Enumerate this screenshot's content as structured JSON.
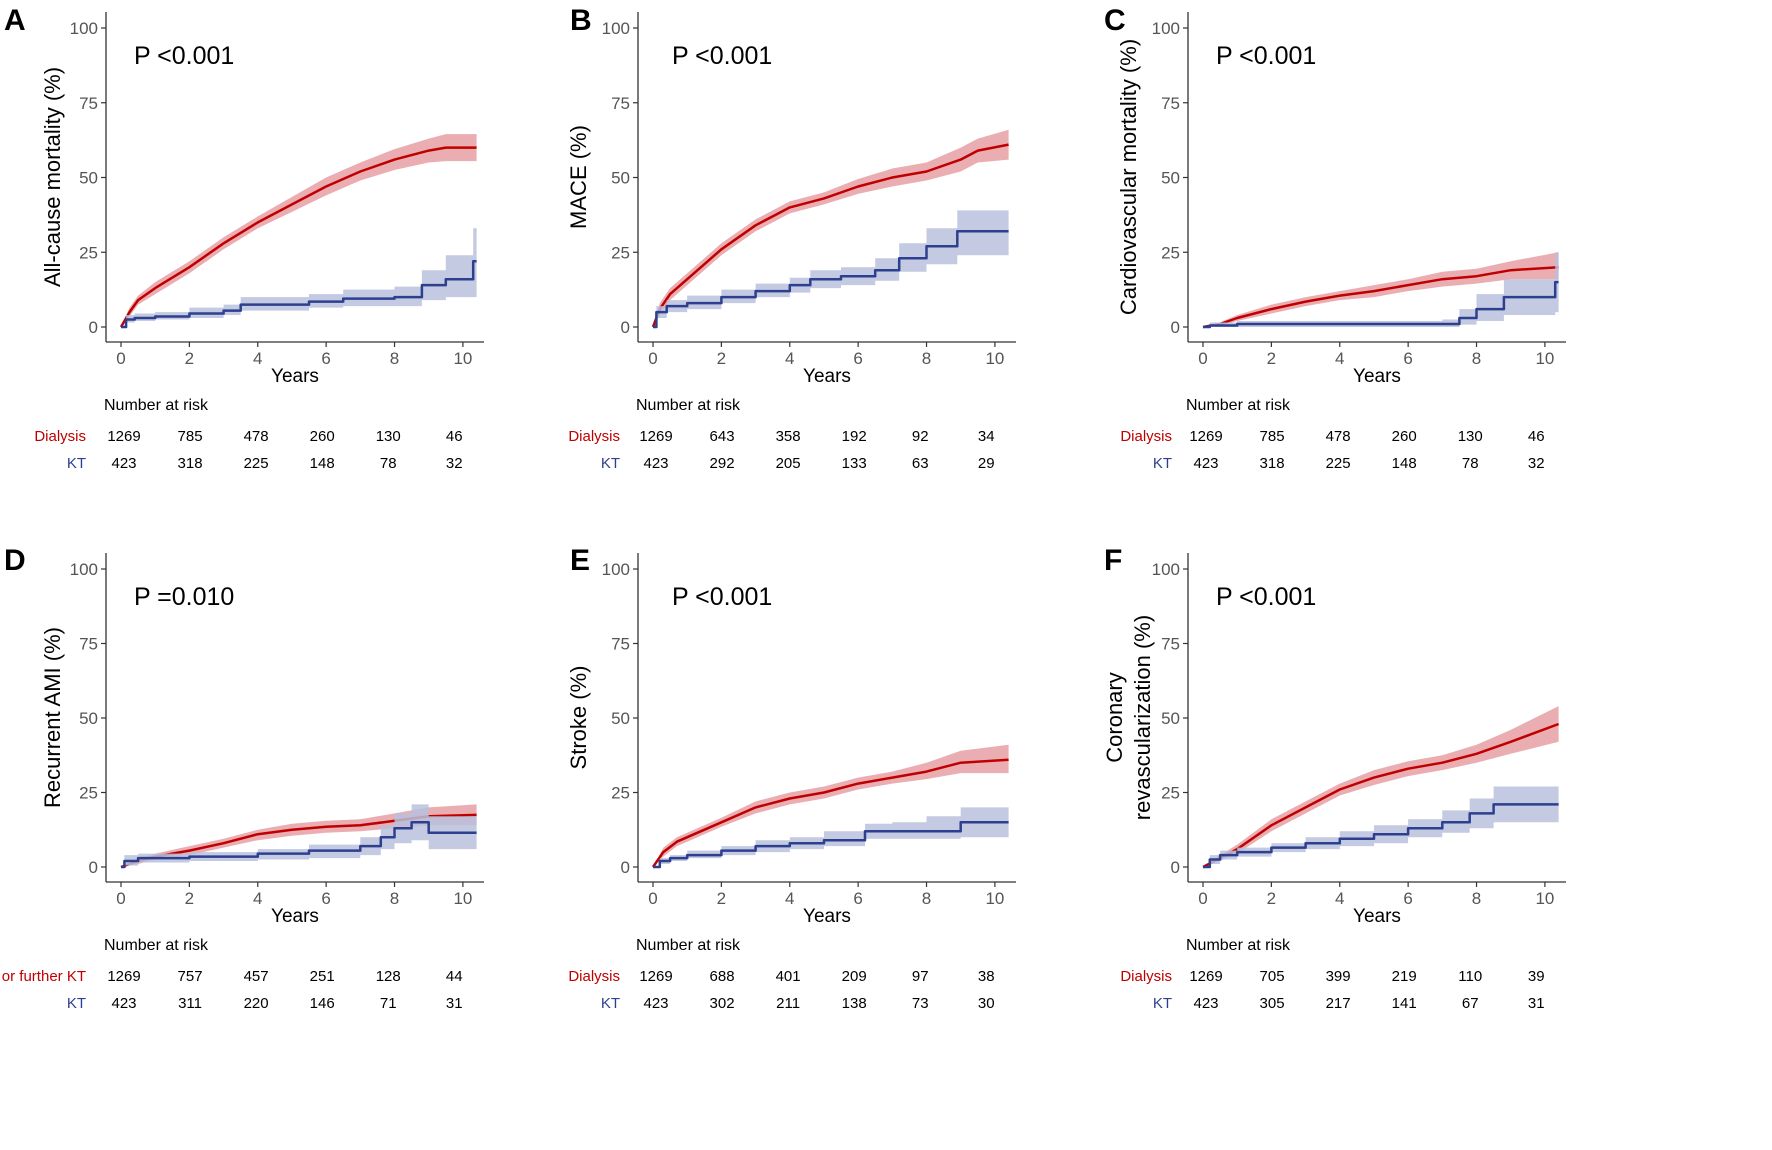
{
  "colors": {
    "dialysis": "#c00000",
    "kt": "#2d3f8f",
    "dialysis_band": "#e6a0a5",
    "kt_band": "#b8c1dc",
    "axis": "#333333"
  },
  "chart_data": [
    {
      "type": "line",
      "panel": "A",
      "pvalue": "P <0.001",
      "ylabel": "All-cause mortality (%)",
      "xlabel": "Years",
      "xlim": [
        0,
        10.5
      ],
      "ylim": [
        0,
        100
      ],
      "xticks": [
        0,
        2,
        4,
        6,
        8,
        10
      ],
      "yticks": [
        0,
        25,
        50,
        75,
        100
      ],
      "series": [
        {
          "name": "Dialysis",
          "color": "dialysis",
          "step": false,
          "x": [
            0,
            0.25,
            0.5,
            1,
            2,
            3,
            4,
            5,
            6,
            7,
            8,
            9,
            9.5,
            10.4
          ],
          "y": [
            0,
            5,
            9,
            13,
            20,
            28,
            35,
            41,
            47,
            52,
            56,
            59,
            60,
            60
          ],
          "lower": [
            0,
            3.5,
            7.5,
            11,
            18,
            26,
            33,
            38.5,
            44,
            49,
            52.5,
            55,
            55.5,
            55.5
          ],
          "upper": [
            0,
            6.5,
            10.5,
            15,
            22,
            30,
            37,
            43.5,
            50,
            55,
            59.5,
            63,
            64.5,
            64.5
          ]
        },
        {
          "name": "KT",
          "color": "kt",
          "step": true,
          "x": [
            0,
            0.15,
            0.4,
            1,
            2,
            3,
            3.5,
            5.5,
            6.5,
            8,
            8.8,
            9.5,
            10.3,
            10.4
          ],
          "y": [
            0,
            2.5,
            3,
            3.5,
            4.5,
            5.5,
            7.5,
            8.5,
            9.5,
            10,
            14,
            16,
            22,
            22
          ],
          "lower": [
            0,
            1.5,
            2,
            2.5,
            3,
            4,
            5.5,
            6.5,
            7,
            7,
            9,
            10,
            10,
            10
          ],
          "upper": [
            0,
            4,
            4.5,
            5,
            6.5,
            7.5,
            10,
            11,
            12.5,
            13.5,
            19,
            24,
            33,
            33
          ]
        }
      ],
      "risk_table": {
        "title": "Number at risk",
        "groups": [
          {
            "label": "Dialysis",
            "color": "dialysis",
            "values": [
              "1269",
              "785",
              "478",
              "260",
              "130",
              "46"
            ]
          },
          {
            "label": "KT",
            "color": "kt",
            "values": [
              "423",
              "318",
              "225",
              "148",
              "78",
              "32"
            ]
          }
        ]
      }
    },
    {
      "type": "line",
      "panel": "B",
      "pvalue": "P <0.001",
      "ylabel": "MACE (%)",
      "xlabel": "Years",
      "xlim": [
        0,
        10.5
      ],
      "ylim": [
        0,
        100
      ],
      "xticks": [
        0,
        2,
        4,
        6,
        8,
        10
      ],
      "yticks": [
        0,
        25,
        50,
        75,
        100
      ],
      "series": [
        {
          "name": "Dialysis",
          "color": "dialysis",
          "step": false,
          "x": [
            0,
            0.2,
            0.5,
            1,
            2,
            3,
            3.5,
            4,
            5,
            6,
            7,
            8,
            9,
            9.5,
            10.4
          ],
          "y": [
            0,
            6,
            11,
            16,
            26,
            34,
            37,
            40,
            43,
            47,
            50,
            52,
            56,
            59,
            61
          ],
          "lower": [
            0,
            4,
            9,
            14,
            24,
            32,
            35,
            38,
            41,
            44.5,
            47,
            49,
            52,
            55,
            56
          ],
          "upper": [
            0,
            8,
            13,
            18,
            28,
            36,
            39,
            42,
            45,
            49.5,
            53,
            55,
            60,
            63,
            66
          ]
        },
        {
          "name": "KT",
          "color": "kt",
          "step": true,
          "x": [
            0,
            0.1,
            0.4,
            1,
            2,
            3,
            4,
            4.6,
            5.5,
            6.5,
            7.2,
            8,
            8.9,
            10.4
          ],
          "y": [
            0,
            5,
            7,
            8,
            10,
            12,
            14,
            16,
            17,
            19,
            23,
            27,
            32,
            32
          ],
          "lower": [
            0,
            3,
            5,
            6,
            8,
            10,
            11.5,
            13,
            14,
            15.5,
            18.5,
            21,
            24,
            24
          ],
          "upper": [
            0,
            7,
            9,
            10.5,
            12.5,
            14.5,
            16.5,
            19,
            20,
            23,
            28,
            33,
            39,
            39
          ]
        }
      ],
      "risk_table": {
        "title": "Number at risk",
        "groups": [
          {
            "label": "Dialysis",
            "color": "dialysis",
            "values": [
              "1269",
              "643",
              "358",
              "192",
              "92",
              "34"
            ]
          },
          {
            "label": "KT",
            "color": "kt",
            "values": [
              "423",
              "292",
              "205",
              "133",
              "63",
              "29"
            ]
          }
        ]
      }
    },
    {
      "type": "line",
      "panel": "C",
      "pvalue": "P <0.001",
      "ylabel": "Cardiovascular mortality (%)",
      "xlabel": "Years",
      "xlim": [
        0,
        10.5
      ],
      "ylim": [
        0,
        100
      ],
      "xticks": [
        0,
        2,
        4,
        6,
        8,
        10
      ],
      "yticks": [
        0,
        25,
        50,
        75,
        100
      ],
      "series": [
        {
          "name": "Dialysis",
          "color": "dialysis",
          "step": false,
          "x": [
            0,
            0.5,
            1,
            2,
            3,
            4,
            5,
            6,
            7,
            8,
            9,
            10.4
          ],
          "y": [
            0,
            1,
            3,
            6,
            8.5,
            10.5,
            12,
            14,
            16,
            17,
            19,
            20
          ],
          "lower": [
            0,
            0.4,
            2,
            4.5,
            7,
            9,
            10,
            12,
            13.5,
            14.5,
            16,
            16
          ],
          "upper": [
            0,
            1.6,
            4,
            7.5,
            10,
            12,
            14,
            16,
            18.5,
            19.5,
            22,
            25
          ]
        },
        {
          "name": "KT",
          "color": "kt",
          "step": true,
          "x": [
            0,
            0.2,
            1,
            7,
            7.5,
            8,
            8.8,
            10.3,
            10.4
          ],
          "y": [
            0,
            0.5,
            1,
            1,
            3,
            6,
            10,
            15,
            15
          ],
          "lower": [
            0,
            0,
            0,
            0,
            0.8,
            2,
            4,
            5,
            5
          ],
          "upper": [
            0,
            1.5,
            2,
            2.5,
            6,
            11,
            16,
            25,
            25
          ]
        }
      ],
      "risk_table": {
        "title": "Number at risk",
        "groups": [
          {
            "label": "Dialysis",
            "color": "dialysis",
            "values": [
              "1269",
              "785",
              "478",
              "260",
              "130",
              "46"
            ]
          },
          {
            "label": "KT",
            "color": "kt",
            "values": [
              "423",
              "318",
              "225",
              "148",
              "78",
              "32"
            ]
          }
        ]
      }
    },
    {
      "type": "line",
      "panel": "D",
      "pvalue": "P =0.010",
      "ylabel": "Recurrent AMI (%)",
      "xlabel": "Years",
      "xlim": [
        0,
        10.5
      ],
      "ylim": [
        0,
        100
      ],
      "xticks": [
        0,
        2,
        4,
        6,
        8,
        10
      ],
      "yticks": [
        0,
        25,
        50,
        75,
        100
      ],
      "series": [
        {
          "name": "Dialysis or further KT",
          "color": "dialysis",
          "step": false,
          "x": [
            0,
            0.5,
            1,
            2,
            3,
            4,
            5,
            6,
            7,
            8,
            9,
            10.4
          ],
          "y": [
            0,
            2,
            3.5,
            5.5,
            8,
            11,
            12.5,
            13.5,
            14,
            15.5,
            17,
            17.5
          ],
          "lower": [
            0,
            1,
            2.5,
            4,
            6.5,
            9,
            10.5,
            11.5,
            12,
            13,
            14,
            14
          ],
          "upper": [
            0,
            3,
            4.5,
            7,
            9.5,
            12.5,
            14.5,
            15.5,
            16,
            18,
            20,
            21
          ]
        },
        {
          "name": "KT",
          "color": "kt",
          "step": true,
          "x": [
            0,
            0.1,
            0.5,
            2,
            4,
            5.5,
            7,
            7.6,
            8,
            8.5,
            9,
            10.4
          ],
          "y": [
            0,
            2,
            3,
            3.5,
            4.5,
            5.5,
            7,
            10,
            13,
            15,
            11.5,
            11.5
          ],
          "lower": [
            0,
            0.5,
            1.5,
            2,
            2.5,
            3,
            4,
            6,
            8,
            9,
            6,
            6
          ],
          "upper": [
            0,
            4,
            4.5,
            5,
            6,
            7.5,
            10,
            14,
            18,
            21,
            17,
            17
          ]
        }
      ],
      "risk_table": {
        "title": "Number at risk",
        "groups": [
          {
            "label": "Dialysis or further KT",
            "color": "dialysis",
            "values": [
              "1269",
              "757",
              "457",
              "251",
              "128",
              "44"
            ]
          },
          {
            "label": "KT",
            "color": "kt",
            "values": [
              "423",
              "311",
              "220",
              "146",
              "71",
              "31"
            ]
          }
        ]
      }
    },
    {
      "type": "line",
      "panel": "E",
      "pvalue": "P <0.001",
      "ylabel": "Stroke (%)",
      "xlabel": "Years",
      "xlim": [
        0,
        10.5
      ],
      "ylim": [
        0,
        100
      ],
      "xticks": [
        0,
        2,
        4,
        6,
        8,
        10
      ],
      "yticks": [
        0,
        25,
        50,
        75,
        100
      ],
      "series": [
        {
          "name": "Dialysis",
          "color": "dialysis",
          "step": false,
          "x": [
            0,
            0.3,
            0.7,
            1,
            2,
            3,
            4,
            5,
            6,
            7,
            8,
            9,
            10.4
          ],
          "y": [
            0,
            5,
            8.5,
            10,
            15,
            20,
            23,
            25,
            28,
            30,
            32,
            35,
            36
          ],
          "lower": [
            0,
            3.5,
            7,
            8.5,
            13.5,
            18,
            21,
            23,
            26,
            28,
            29.5,
            31.5,
            31.5
          ],
          "upper": [
            0,
            6.5,
            10,
            11.5,
            16.5,
            22,
            25,
            27,
            30,
            32,
            35,
            39,
            41
          ]
        },
        {
          "name": "KT",
          "color": "kt",
          "step": true,
          "x": [
            0,
            0.2,
            0.5,
            1,
            2,
            3,
            4,
            5,
            6.2,
            7,
            8,
            9,
            10.4
          ],
          "y": [
            0,
            2,
            3,
            4,
            5.5,
            7,
            8,
            9,
            12,
            12,
            12,
            15,
            15
          ],
          "lower": [
            0,
            1,
            2,
            3,
            4,
            5,
            6,
            7,
            9.5,
            9.5,
            9.5,
            10,
            10
          ],
          "upper": [
            0,
            3,
            4,
            5.5,
            7,
            9,
            10,
            12,
            14.5,
            15,
            17,
            20,
            20
          ]
        }
      ],
      "risk_table": {
        "title": "Number at risk",
        "groups": [
          {
            "label": "Dialysis",
            "color": "dialysis",
            "values": [
              "1269",
              "688",
              "401",
              "209",
              "97",
              "38"
            ]
          },
          {
            "label": "KT",
            "color": "kt",
            "values": [
              "423",
              "302",
              "211",
              "138",
              "73",
              "30"
            ]
          }
        ]
      }
    },
    {
      "type": "line",
      "panel": "F",
      "pvalue": "P <0.001",
      "ylabel": "Coronary revascularization (%)",
      "ylabel_lines": [
        "Coronary",
        "revascularization (%)"
      ],
      "xlabel": "Years",
      "xlim": [
        0,
        10.5
      ],
      "ylim": [
        0,
        100
      ],
      "xticks": [
        0,
        2,
        4,
        6,
        8,
        10
      ],
      "yticks": [
        0,
        25,
        50,
        75,
        100
      ],
      "series": [
        {
          "name": "Dialysis",
          "color": "dialysis",
          "step": false,
          "x": [
            0,
            0.5,
            1,
            2,
            3,
            4,
            5,
            6,
            7,
            8,
            9,
            10.4
          ],
          "y": [
            0,
            3,
            6,
            14,
            20,
            26,
            30,
            33,
            35,
            38,
            42,
            48
          ],
          "lower": [
            0,
            2,
            4.5,
            12,
            18,
            24,
            27.5,
            30.5,
            32.5,
            35,
            38,
            42
          ],
          "upper": [
            0,
            4,
            7.5,
            16,
            22,
            28,
            32.5,
            35.5,
            37.5,
            41,
            46,
            54
          ]
        },
        {
          "name": "KT",
          "color": "kt",
          "step": true,
          "x": [
            0,
            0.2,
            0.5,
            1,
            2,
            3,
            4,
            5,
            6,
            7,
            7.8,
            8.5,
            10.4
          ],
          "y": [
            0,
            2.5,
            4,
            5,
            6.5,
            8,
            9.5,
            11,
            13,
            15,
            18,
            21,
            21
          ],
          "lower": [
            0,
            1,
            2.5,
            3.5,
            5,
            6,
            7,
            8,
            10,
            11.5,
            13,
            15,
            15
          ],
          "upper": [
            0,
            4,
            5.5,
            6.5,
            8,
            10,
            12,
            14,
            16,
            19,
            23,
            27,
            27
          ]
        }
      ],
      "risk_table": {
        "title": "Number at risk",
        "groups": [
          {
            "label": "Dialysis",
            "color": "dialysis",
            "values": [
              "1269",
              "705",
              "399",
              "219",
              "110",
              "39"
            ]
          },
          {
            "label": "KT",
            "color": "kt",
            "values": [
              "423",
              "305",
              "217",
              "141",
              "67",
              "31"
            ]
          }
        ]
      }
    }
  ]
}
